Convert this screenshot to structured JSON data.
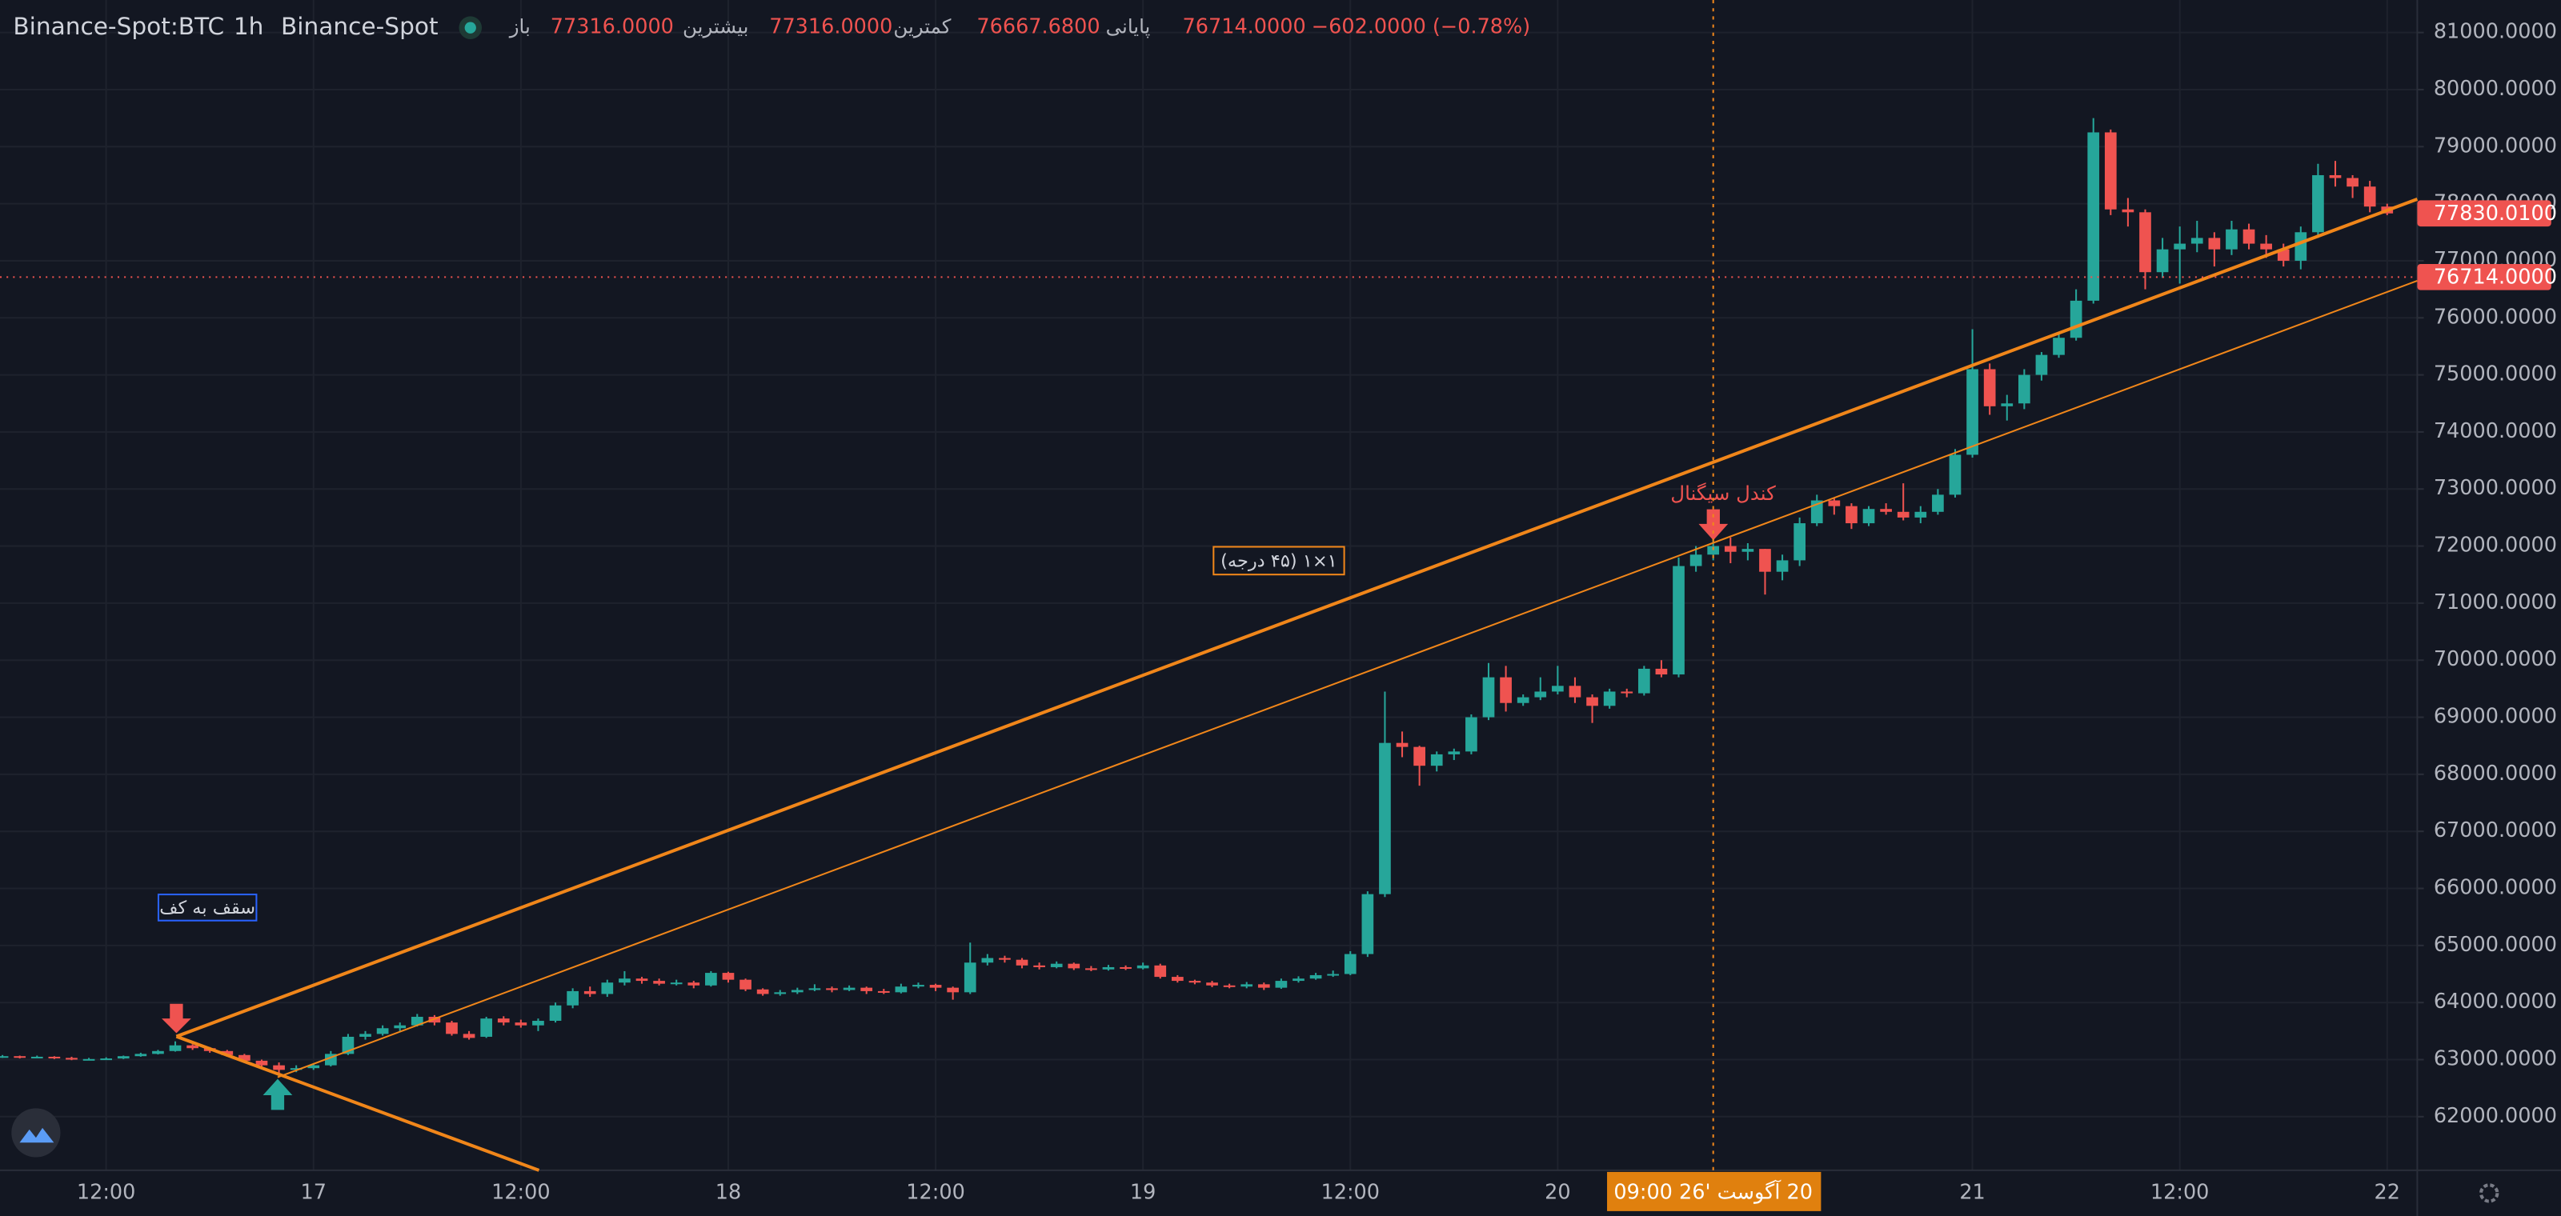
{
  "chart_data": {
    "type": "candlestick",
    "symbol": "Binance-Spot:BTC",
    "interval": "1h",
    "exchange": "Binance-Spot",
    "header": {
      "open_label": "باز",
      "open": "77316.0000",
      "high_label": "بیشترین",
      "high": "77316.0000",
      "low_label": "کمترین",
      "low": "76667.6800",
      "close_label": "پایانی",
      "close": "76714.0000",
      "change": "−602.0000 (−0.78%)"
    },
    "up_color": "#26a69a",
    "down_color": "#ef5350",
    "grid": true,
    "categories": [
      null,
      null,
      null,
      null,
      null,
      null,
      "12:00",
      null,
      null,
      null,
      null,
      null,
      null,
      null,
      null,
      null,
      null,
      null,
      "17",
      null,
      null,
      null,
      null,
      null,
      null,
      null,
      null,
      null,
      null,
      null,
      "12:00",
      null,
      null,
      null,
      null,
      null,
      null,
      null,
      null,
      null,
      null,
      null,
      "18",
      null,
      null,
      null,
      null,
      null,
      null,
      null,
      null,
      null,
      null,
      null,
      "12:00",
      null,
      null,
      null,
      null,
      null,
      null,
      null,
      null,
      null,
      null,
      null,
      "19",
      null,
      null,
      null,
      null,
      null,
      null,
      null,
      null,
      null,
      null,
      null,
      "12:00",
      null,
      null,
      null,
      null,
      null,
      null,
      null,
      null,
      null,
      null,
      null,
      "20",
      null,
      null,
      null,
      null,
      null,
      null,
      null,
      null,
      null,
      null,
      null,
      null,
      null,
      null,
      null,
      null,
      null,
      null,
      null,
      null,
      null,
      null,
      null,
      "21",
      null,
      null,
      null,
      null,
      null,
      null,
      null,
      null,
      null,
      null,
      null,
      "12:00",
      null,
      null,
      null,
      null,
      null,
      null,
      null,
      null,
      null,
      null,
      null,
      "22"
    ],
    "open": [
      63050,
      63060,
      63040,
      63050,
      63030,
      63000,
      63010,
      63020,
      63060,
      63100,
      63150,
      63250,
      63200,
      63150,
      63080,
      62980,
      62900,
      62820,
      62850,
      62900,
      63100,
      63400,
      63450,
      63550,
      63600,
      63750,
      63650,
      63450,
      63400,
      63720,
      63650,
      63600,
      63680,
      63950,
      64200,
      64150,
      64350,
      64420,
      64380,
      64330,
      64350,
      64300,
      64520,
      64400,
      64230,
      64150,
      64180,
      64220,
      64250,
      64220,
      64260,
      64200,
      64180,
      64280,
      64310,
      64260,
      64180,
      64700,
      64780,
      64750,
      64650,
      64620,
      64680,
      64600,
      64580,
      64620,
      64600,
      64650,
      64450,
      64380,
      64350,
      64300,
      64280,
      64320,
      64260,
      64380,
      64420,
      64480,
      64500,
      64850,
      65900,
      68550,
      68480,
      68150,
      68350,
      68400,
      69000,
      69700,
      69250,
      69350,
      69450,
      69550,
      69350,
      69200,
      69450,
      69420,
      69850,
      69750,
      71650,
      71850,
      72000,
      71900,
      71950,
      71550,
      71750,
      72400,
      72800,
      72700,
      72400,
      72650,
      72600,
      72500,
      72600,
      72900,
      73600,
      75100,
      74450,
      74500,
      75000,
      75350,
      75650,
      76300,
      79250,
      77900,
      77850,
      76800,
      77200,
      77300,
      77400,
      77200,
      77550,
      77300,
      77200,
      77000,
      77500,
      78500,
      78450,
      78300,
      77950
    ],
    "high": [
      63080,
      63070,
      63070,
      63060,
      63050,
      63030,
      63040,
      63070,
      63120,
      63170,
      63320,
      63270,
      63220,
      63170,
      63100,
      63000,
      62950,
      62900,
      62930,
      63150,
      63450,
      63500,
      63600,
      63650,
      63800,
      63780,
      63680,
      63500,
      63750,
      63760,
      63700,
      63720,
      64000,
      64250,
      64280,
      64400,
      64550,
      64450,
      64420,
      64400,
      64380,
      64550,
      64540,
      64420,
      64250,
      64220,
      64260,
      64320,
      64280,
      64300,
      64280,
      64240,
      64330,
      64350,
      64330,
      64280,
      65050,
      64850,
      64820,
      64780,
      64700,
      64720,
      64700,
      64640,
      64660,
      64650,
      64700,
      64680,
      64480,
      64400,
      64380,
      64330,
      64360,
      64350,
      64420,
      64460,
      64520,
      64560,
      64900,
      65950,
      69450,
      68750,
      68500,
      68400,
      68450,
      69050,
      69950,
      69900,
      69400,
      69700,
      69900,
      69700,
      69400,
      69500,
      69500,
      69900,
      70000,
      71800,
      72000,
      72250,
      72150,
      72050,
      71950,
      71850,
      72500,
      72900,
      72850,
      72750,
      72700,
      72750,
      73100,
      72700,
      73000,
      73700,
      75800,
      75200,
      74650,
      75100,
      75400,
      75750,
      76500,
      79500,
      79300,
      78100,
      77900,
      77400,
      77600,
      77700,
      77500,
      77700,
      77650,
      77450,
      77300,
      77600,
      78700,
      78750,
      78500,
      78400,
      78000
    ],
    "low": [
      63030,
      63020,
      63030,
      63010,
      62990,
      62990,
      63000,
      63010,
      63050,
      63090,
      63140,
      63170,
      63120,
      63050,
      62950,
      62850,
      62700,
      62780,
      62820,
      62880,
      63080,
      63350,
      63420,
      63500,
      63580,
      63600,
      63420,
      63350,
      63380,
      63600,
      63560,
      63500,
      63650,
      63900,
      64100,
      64100,
      64300,
      64330,
      64300,
      64300,
      64250,
      64280,
      64350,
      64200,
      64120,
      64120,
      64150,
      64200,
      64180,
      64200,
      64150,
      64150,
      64160,
      64250,
      64200,
      64050,
      64150,
      64650,
      64700,
      64600,
      64580,
      64600,
      64570,
      64550,
      64560,
      64570,
      64580,
      64420,
      64350,
      64320,
      64270,
      64250,
      64250,
      64220,
      64240,
      64350,
      64400,
      64450,
      64480,
      64800,
      65850,
      68300,
      67800,
      68050,
      68250,
      68350,
      68950,
      69100,
      69200,
      69300,
      69400,
      69250,
      68900,
      69150,
      69350,
      69380,
      69700,
      69700,
      71550,
      71750,
      71700,
      71750,
      71150,
      71400,
      71650,
      72350,
      72550,
      72300,
      72350,
      72550,
      72450,
      72400,
      72550,
      72850,
      73550,
      74300,
      74200,
      74400,
      74900,
      75300,
      75600,
      76250,
      77800,
      77600,
      76500,
      76700,
      76600,
      77150,
      76900,
      77100,
      77200,
      77050,
      76900,
      76850,
      77400,
      78300,
      78100,
      77850,
      77800
    ],
    "close": [
      63060,
      63040,
      63050,
      63030,
      63000,
      63010,
      63020,
      63060,
      63100,
      63150,
      63250,
      63200,
      63150,
      63080,
      62980,
      62900,
      62820,
      62850,
      62900,
      63100,
      63400,
      63450,
      63550,
      63600,
      63750,
      63650,
      63450,
      63380,
      63720,
      63650,
      63600,
      63680,
      63950,
      64200,
      64150,
      64350,
      64420,
      64380,
      64330,
      64350,
      64300,
      64520,
      64400,
      64230,
      64150,
      64180,
      64220,
      64250,
      64220,
      64260,
      64200,
      64180,
      64280,
      64310,
      64260,
      64180,
      64700,
      64780,
      64750,
      64650,
      64620,
      64680,
      64600,
      64580,
      64620,
      64600,
      64650,
      64450,
      64380,
      64350,
      64300,
      64280,
      64320,
      64260,
      64380,
      64420,
      64480,
      64500,
      64850,
      65900,
      68550,
      68480,
      68150,
      68350,
      68400,
      69000,
      69700,
      69250,
      69350,
      69450,
      69550,
      69350,
      69200,
      69450,
      69420,
      69850,
      69750,
      71650,
      71850,
      72000,
      71900,
      71950,
      71550,
      71750,
      72400,
      72800,
      72700,
      72400,
      72650,
      72600,
      72500,
      72600,
      72900,
      73600,
      75100,
      74450,
      74500,
      75000,
      75350,
      75650,
      76300,
      79250,
      77900,
      77850,
      76800,
      77200,
      77300,
      77400,
      77200,
      77550,
      77300,
      77200,
      77000,
      77500,
      78500,
      78450,
      78300,
      77950,
      77830.01
    ],
    "ylim": [
      61060,
      81570
    ],
    "yticks": [
      {
        "value": 62000,
        "label": "62000.0000"
      },
      {
        "value": 63000,
        "label": "63000.0000"
      },
      {
        "value": 64000,
        "label": "64000.0000"
      },
      {
        "value": 65000,
        "label": "65000.0000"
      },
      {
        "value": 66000,
        "label": "66000.0000"
      },
      {
        "value": 67000,
        "label": "67000.0000"
      },
      {
        "value": 68000,
        "label": "68000.0000"
      },
      {
        "value": 69000,
        "label": "69000.0000"
      },
      {
        "value": 70000,
        "label": "70000.0000"
      },
      {
        "value": 71000,
        "label": "71000.0000"
      },
      {
        "value": 72000,
        "label": "72000.0000"
      },
      {
        "value": 73000,
        "label": "73000.0000"
      },
      {
        "value": 74000,
        "label": "74000.0000"
      },
      {
        "value": 75000,
        "label": "75000.0000"
      },
      {
        "value": 76000,
        "label": "76000.0000"
      },
      {
        "value": 77000,
        "label": "77000.0000"
      },
      {
        "value": 78000,
        "label": "78000.0000"
      },
      {
        "value": 79000,
        "label": "79000.0000"
      },
      {
        "value": 80000,
        "label": "80000.0000"
      },
      {
        "value": 81000,
        "label": "81000.0000"
      }
    ],
    "price_lines": [
      {
        "value": 77830.01,
        "label": "77830.0100",
        "dotted": false
      },
      {
        "value": 76714,
        "label": "76714.0000",
        "dotted": true
      }
    ],
    "annotations": {
      "top_to_bottom": "سقف به کف",
      "gann": "۱×۱ (۴۵ درجه)",
      "signal": "کندل سیگنال"
    },
    "crosshair_label": "20 آگوست '26 09:00"
  }
}
